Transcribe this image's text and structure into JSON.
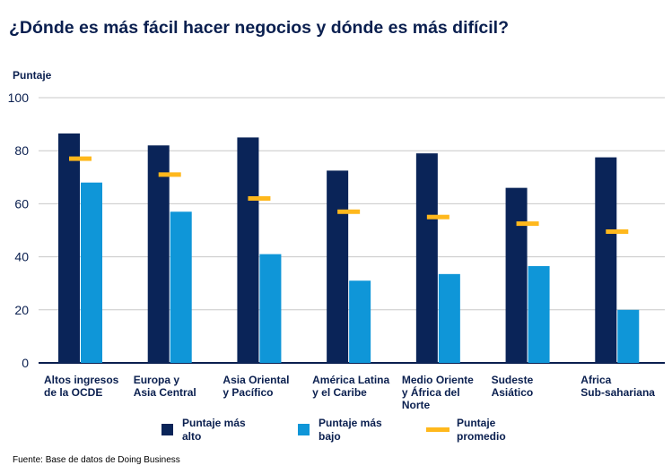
{
  "chart_data": {
    "type": "bar",
    "title": "¿Dónde es más fácil hacer negocios y dónde es más difícil?",
    "ylabel": "Puntaje",
    "xlabel": "",
    "ylim": [
      0,
      100
    ],
    "yticks": [
      0,
      20,
      40,
      60,
      80,
      100
    ],
    "grid": true,
    "legend_position": "bottom",
    "categories": [
      [
        "Altos ingresos",
        "de la OCDE"
      ],
      [
        "Europa y",
        "Asia Central"
      ],
      [
        "Asia Oriental",
        "y Pacífico"
      ],
      [
        "América Latina",
        "y el Caribe"
      ],
      [
        "Medio Oriente",
        " y África del",
        "Norte"
      ],
      [
        "Sudeste",
        "Asiático"
      ],
      [
        "Africa",
        "Sub-sahariana"
      ]
    ],
    "series": [
      {
        "name": "Puntaje más alto",
        "kind": "bar",
        "color": "#0a2458",
        "values": [
          86.5,
          82,
          85,
          72.5,
          79,
          66,
          77.5
        ]
      },
      {
        "name": "Puntaje más bajo",
        "kind": "bar",
        "color": "#0f96d8",
        "values": [
          68,
          57,
          41,
          31,
          33.5,
          36.5,
          20
        ]
      },
      {
        "name": "Puntaje promedio",
        "kind": "marker",
        "color": "#ffb81c",
        "values": [
          77,
          71,
          62,
          57,
          55,
          52.5,
          49.5
        ]
      }
    ]
  },
  "legend": [
    {
      "label": "Puntaje más alto"
    },
    {
      "label": "Puntaje más bajo"
    },
    {
      "label": "Puntaje promedio"
    }
  ],
  "source": "Fuente: Base de datos de Doing Business"
}
